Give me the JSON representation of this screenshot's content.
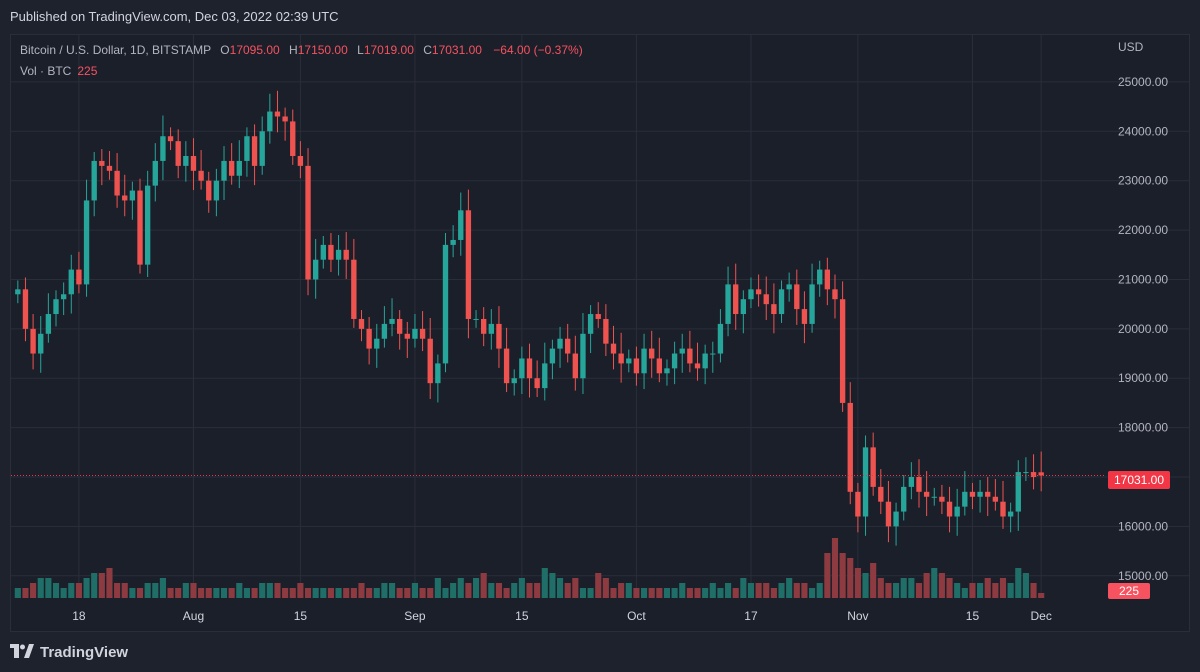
{
  "header": {
    "published": "Published on TradingView.com, Dec 03, 2022 02:39 UTC"
  },
  "legend": {
    "symbol": "Bitcoin / U.S. Dollar, 1D, BITSTAMP",
    "o_label": "O",
    "o_value": "17095.00",
    "h_label": "H",
    "h_value": "17150.00",
    "l_label": "L",
    "l_value": "17019.00",
    "c_label": "C",
    "c_value": "17031.00",
    "change": "−64.00 (−0.37%)",
    "vol_label": "Vol · BTC",
    "vol_value": "225"
  },
  "currency": "USD",
  "last_price_tag": "17031.00",
  "last_volume_tag": "225",
  "footer": {
    "brand": "TradingView",
    "logo_icon": "tradingview-logo-icon"
  },
  "colors": {
    "up": "#26a69a",
    "down": "#ef5350",
    "up_volume": "#1f6f68",
    "down_volume": "#8d3b40",
    "background": "#1b1f2a",
    "grid": "#2a2e39",
    "price_line": "#f23645"
  },
  "chart_data": {
    "type": "candlestick",
    "x_tick_labels": [
      "18",
      "Aug",
      "15",
      "Sep",
      "15",
      "Oct",
      "17",
      "Nov",
      "15",
      "Dec"
    ],
    "y_tick_labels": [
      "25000.00",
      "24000.00",
      "23000.00",
      "22000.00",
      "21000.00",
      "20000.00",
      "19000.00",
      "18000.00",
      "17000.00",
      "16000.00",
      "15000.00"
    ],
    "y_ticks": [
      25000,
      24000,
      23000,
      22000,
      21000,
      20000,
      19000,
      18000,
      17000,
      16000,
      15000
    ],
    "ylim": [
      14550,
      25950
    ],
    "last_close": 17031,
    "closes": [
      20800,
      20000,
      19500,
      19900,
      20300,
      20600,
      20700,
      21200,
      20900,
      22600,
      23400,
      23300,
      23200,
      22700,
      22600,
      22800,
      21300,
      22900,
      23400,
      23900,
      23800,
      23300,
      23500,
      23200,
      23000,
      22600,
      23000,
      23400,
      23100,
      23400,
      23900,
      23300,
      24000,
      24400,
      24300,
      24200,
      23500,
      23300,
      21000,
      21400,
      21700,
      21400,
      21600,
      21400,
      20200,
      20000,
      19600,
      19800,
      20100,
      20200,
      19900,
      19800,
      20000,
      19800,
      18900,
      19300,
      21700,
      21800,
      22400,
      20200,
      20200,
      19900,
      20100,
      19600,
      18900,
      19000,
      19400,
      19000,
      18800,
      19300,
      19600,
      19800,
      19500,
      19000,
      19900,
      20300,
      20200,
      19700,
      19500,
      19300,
      19400,
      19100,
      19600,
      19400,
      19100,
      19200,
      19500,
      19600,
      19300,
      19200,
      19500,
      19500,
      20100,
      20900,
      20300,
      20600,
      20800,
      20700,
      20500,
      20300,
      20800,
      20900,
      20400,
      20100,
      20900,
      21200,
      20800,
      20600,
      18500,
      16700,
      16200,
      17600,
      16800,
      16500,
      16000,
      16300,
      16800,
      17000,
      16700,
      16600,
      16600,
      16500,
      16200,
      16400,
      16700,
      16600,
      16700,
      16600,
      16500,
      16200,
      16300,
      17100,
      17100,
      17000,
      17031
    ],
    "opens": [
      20700,
      20800,
      20000,
      19500,
      19900,
      20300,
      20600,
      20700,
      21200,
      20900,
      22600,
      23400,
      23300,
      23200,
      22700,
      22600,
      22800,
      21300,
      22900,
      23400,
      23900,
      23800,
      23300,
      23500,
      23200,
      23000,
      22600,
      23000,
      23400,
      23100,
      23400,
      23900,
      23300,
      24000,
      24400,
      24300,
      24200,
      23500,
      23300,
      21000,
      21400,
      21700,
      21400,
      21600,
      21400,
      20200,
      20000,
      19600,
      19800,
      20100,
      20200,
      19900,
      19800,
      20000,
      19800,
      18900,
      19300,
      21700,
      21800,
      22400,
      20200,
      20200,
      19900,
      20100,
      19600,
      18900,
      19000,
      19400,
      19000,
      18800,
      19300,
      19600,
      19800,
      19500,
      19000,
      19900,
      20300,
      20200,
      19700,
      19500,
      19300,
      19400,
      19100,
      19600,
      19400,
      19100,
      19200,
      19500,
      19600,
      19300,
      19200,
      19500,
      19500,
      20100,
      20900,
      20300,
      20600,
      20800,
      20700,
      20500,
      20300,
      20800,
      20900,
      20400,
      20100,
      20900,
      21200,
      20800,
      20600,
      18500,
      16700,
      16200,
      17600,
      16800,
      16500,
      16000,
      16300,
      16800,
      17000,
      16700,
      16600,
      16600,
      16500,
      16200,
      16400,
      16700,
      16600,
      16700,
      16600,
      16500,
      16200,
      16300,
      17100,
      17100,
      17095
    ],
    "volumes": [
      2,
      2,
      3,
      4,
      4,
      3,
      2,
      3,
      3,
      4,
      5,
      5,
      6,
      3,
      3,
      2,
      2,
      3,
      3,
      4,
      2,
      2,
      3,
      3,
      2,
      2,
      2,
      2,
      2,
      3,
      2,
      2,
      3,
      3,
      3,
      2,
      2,
      3,
      2,
      2,
      2,
      2,
      2,
      2,
      2,
      3,
      2,
      2,
      3,
      3,
      2,
      2,
      3,
      2,
      2,
      4,
      2,
      3,
      4,
      3,
      4,
      5,
      3,
      3,
      2,
      3,
      4,
      3,
      3,
      6,
      5,
      4,
      3,
      4,
      2,
      2,
      5,
      4,
      2,
      3,
      3,
      2,
      2,
      2,
      2,
      2,
      2,
      3,
      2,
      2,
      2,
      3,
      2,
      3,
      2,
      4,
      3,
      3,
      3,
      2,
      3,
      4,
      3,
      3,
      2,
      3,
      9,
      12,
      9,
      8,
      6,
      5,
      7,
      4,
      3,
      3,
      4,
      4,
      3,
      5,
      6,
      5,
      4,
      3,
      2,
      3,
      3,
      4,
      3,
      4,
      3,
      6,
      5,
      3,
      1
    ]
  }
}
